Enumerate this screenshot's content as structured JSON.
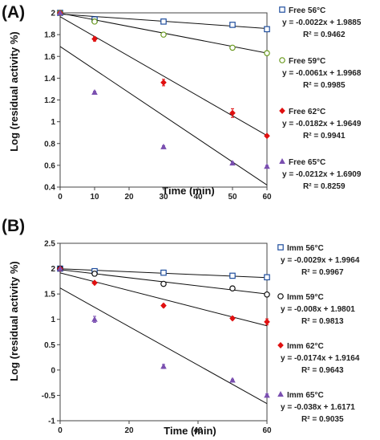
{
  "chart_data": [
    {
      "type": "scatter",
      "panel_label": "(A)",
      "xlabel": "Time (min)",
      "ylabel": "Log (residual activity %)",
      "xlim": [
        0,
        60
      ],
      "ylim": [
        0.4,
        2
      ],
      "xticks": [
        "0",
        "10",
        "20",
        "30",
        "40",
        "50",
        "60"
      ],
      "yticks": [
        "0.4",
        "0.6",
        "0.8",
        "1",
        "1.2",
        "1.4",
        "1.6",
        "1.8",
        "2"
      ],
      "grid": false,
      "legend_position": "right",
      "series": [
        {
          "name": "Free 56°C",
          "marker": "square-open",
          "color": "#1f4e9e",
          "x": [
            0,
            10,
            30,
            50,
            60
          ],
          "y": [
            2.0,
            1.94,
            1.92,
            1.89,
            1.85
          ],
          "err": [
            0,
            0.01,
            0.02,
            0.01,
            0.01
          ],
          "equation": "y = -0.0022x + 1.9885",
          "r2": "R² = 0.9462",
          "slope": -0.0022,
          "intercept": 1.9885
        },
        {
          "name": "Free 59°C",
          "marker": "circle-open",
          "color": "#6a9a1f",
          "x": [
            0,
            10,
            30,
            50,
            60
          ],
          "y": [
            2.0,
            1.92,
            1.8,
            1.68,
            1.63
          ],
          "err": [
            0,
            0.015,
            0.02,
            0.015,
            0.02
          ],
          "equation": "y = -0.0061x + 1.9968",
          "r2": "R² = 0.9985",
          "slope": -0.0061,
          "intercept": 1.9968
        },
        {
          "name": "Free 62°C",
          "marker": "diamond",
          "color": "#e01010",
          "x": [
            0,
            10,
            30,
            50,
            60
          ],
          "y": [
            2.0,
            1.76,
            1.36,
            1.08,
            0.87
          ],
          "err": [
            0,
            0.02,
            0.03,
            0.04,
            0.01
          ],
          "equation": "y = -0.0182x + 1.9649",
          "r2": "R² = 0.9941",
          "slope": -0.0182,
          "intercept": 1.9649
        },
        {
          "name": "Free 65°C",
          "marker": "triangle",
          "color": "#7a4fb0",
          "x": [
            0,
            10,
            30,
            50,
            60
          ],
          "y": [
            2.0,
            1.27,
            0.77,
            0.62,
            0.59
          ],
          "err": [
            0,
            0.01,
            0.01,
            0.01,
            0.01
          ],
          "equation": "y = -0.0212x + 1.6909",
          "r2": "R² = 0.8259",
          "slope": -0.0212,
          "intercept": 1.6909
        }
      ]
    },
    {
      "type": "scatter",
      "panel_label": "(B)",
      "xlabel": "Time (min)",
      "ylabel": "Log (residual activity %)",
      "xlim": [
        0,
        60
      ],
      "ylim": [
        -1,
        2.5
      ],
      "xticks": [
        "0",
        "20",
        "40",
        "60"
      ],
      "yticks": [
        "-1",
        "-0.5",
        "0",
        "0.5",
        "1",
        "1.5",
        "2",
        "2.5"
      ],
      "grid": false,
      "legend_position": "right",
      "series": [
        {
          "name": "Imm 56°C",
          "marker": "square-open",
          "color": "#1f4e9e",
          "x": [
            0,
            10,
            30,
            50,
            60
          ],
          "y": [
            2.0,
            1.95,
            1.92,
            1.86,
            1.83
          ],
          "err": [
            0,
            0.02,
            0.02,
            0.02,
            0.02
          ],
          "equation": "y = -0.0029x + 1.9964",
          "r2": "R² = 0.9967",
          "slope": -0.0029,
          "intercept": 1.9964
        },
        {
          "name": "Imm 59°C",
          "marker": "circle-open",
          "color": "#111111",
          "x": [
            0,
            10,
            30,
            50,
            60
          ],
          "y": [
            2.0,
            1.9,
            1.7,
            1.61,
            1.49
          ],
          "err": [
            0,
            0.03,
            0.02,
            0.03,
            0.02
          ],
          "equation": "y = -0.008x + 1.9801",
          "r2": "R² = 0.9813",
          "slope": -0.008,
          "intercept": 1.9801
        },
        {
          "name": "Imm 62°C",
          "marker": "diamond",
          "color": "#e01010",
          "x": [
            0,
            10,
            30,
            50,
            60
          ],
          "y": [
            2.0,
            1.72,
            1.27,
            1.02,
            0.95
          ],
          "err": [
            0,
            0.02,
            0.03,
            0.03,
            0.06
          ],
          "equation": "y = -0.0174x + 1.9164",
          "r2": "R² = 0.9643",
          "slope": -0.0174,
          "intercept": 1.9164
        },
        {
          "name": "Imm 65°C",
          "marker": "triangle",
          "color": "#7a4fb0",
          "x": [
            0,
            10,
            30,
            50,
            60
          ],
          "y": [
            2.0,
            1.0,
            0.07,
            -0.2,
            -0.5
          ],
          "err": [
            0,
            0.06,
            0.04,
            0.02,
            0.03
          ],
          "equation": "y = -0.038x + 1.6171",
          "r2": "R² = 0.9035",
          "slope": -0.038,
          "intercept": 1.6171
        }
      ]
    }
  ]
}
